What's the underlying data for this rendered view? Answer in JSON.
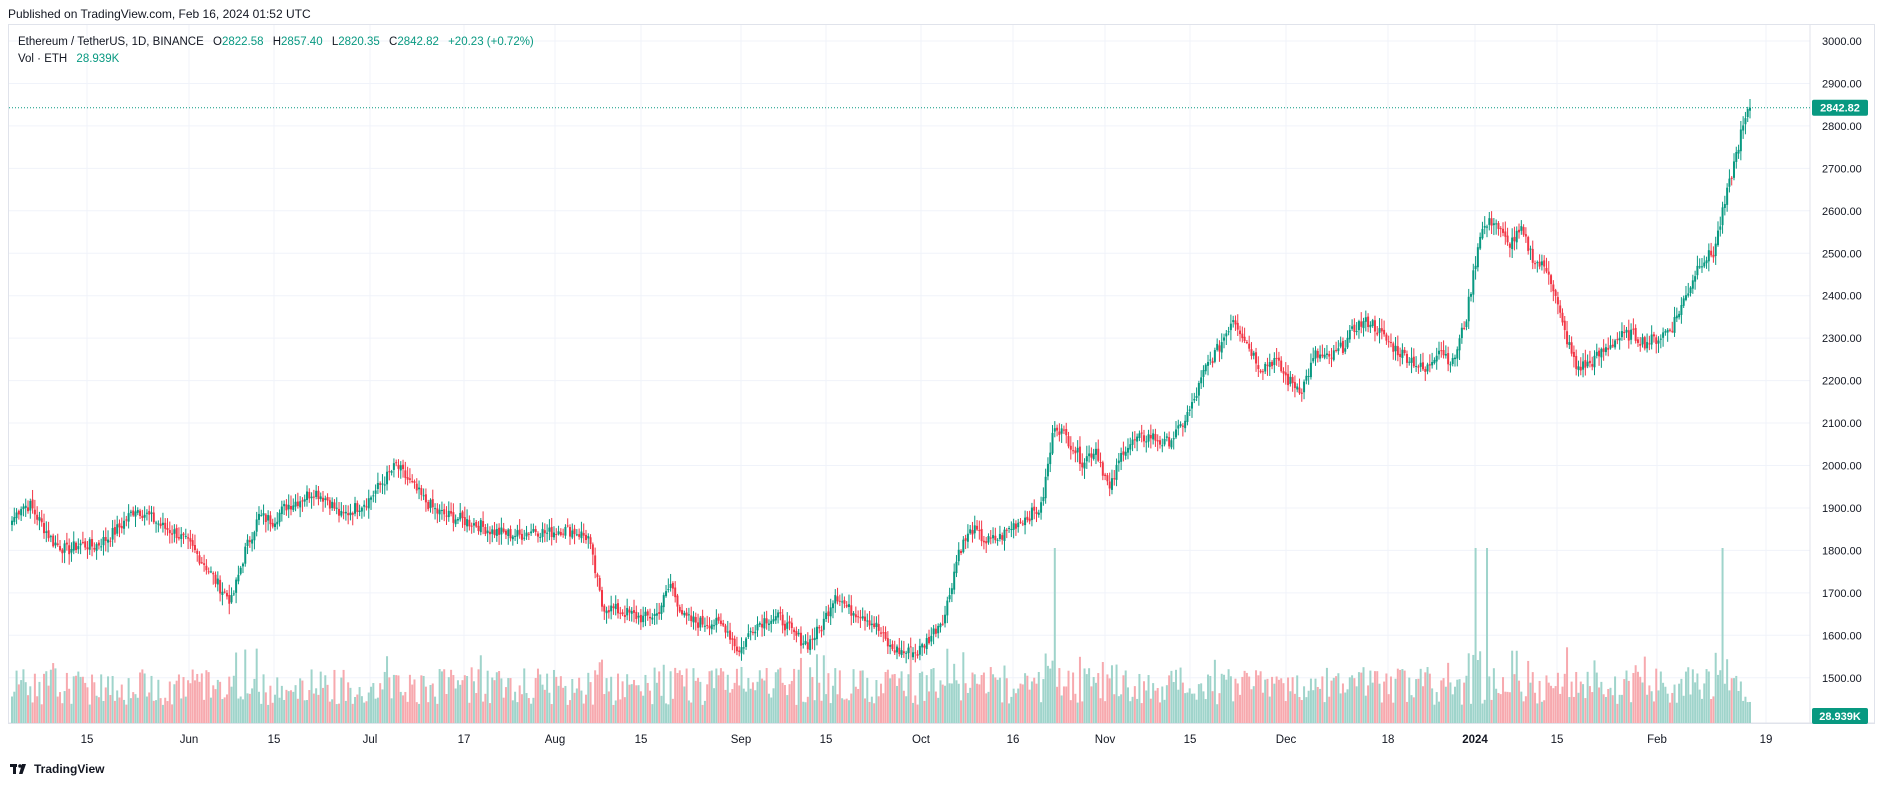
{
  "header": {
    "published": "Published on TradingView.com, Feb 16, 2024 01:52 UTC"
  },
  "legend": {
    "symbol": "Ethereum / TetherUS, 1D, BINANCE",
    "open_label": "O",
    "open": "2822.58",
    "high_label": "H",
    "high": "2857.40",
    "low_label": "L",
    "low": "2820.35",
    "close_label": "C",
    "close": "2842.82",
    "change": "+20.23 (+0.72%)",
    "vol_label": "Vol · ETH",
    "vol_value": "28.939K"
  },
  "footer": {
    "brand": "TradingView",
    "logo_icon": "tradingview-logo-icon"
  },
  "colors": {
    "up": "#089981",
    "down": "#f23645",
    "up_vol": "#9fd4cb",
    "down_vol": "#f7a9ae",
    "grid": "#f0f3fa"
  },
  "chart_data": {
    "type": "candlestick",
    "symbol": "ETHUSDT",
    "interval": "1D",
    "ylim": [
      1450,
      3000
    ],
    "y_ticks": [
      "3000.00",
      "2900.00",
      "2800.00",
      "2700.00",
      "2600.00",
      "2500.00",
      "2400.00",
      "2300.00",
      "2200.00",
      "2100.00",
      "2000.00",
      "1900.00",
      "1800.00",
      "1700.00",
      "1600.00",
      "1500.00"
    ],
    "x_ticks": [
      "15",
      "Jun",
      "15",
      "Jul",
      "17",
      "Aug",
      "15",
      "Sep",
      "15",
      "Oct",
      "16",
      "Nov",
      "15",
      "Dec",
      "18",
      "2024",
      "15",
      "Feb",
      "19"
    ],
    "x_tick_bold": [
      "2024"
    ],
    "last_price_label": "2842.82",
    "last_price": 2842.82,
    "last_volume_label": "28.939K",
    "ohlc_anchor_closes": [
      [
        0,
        1870
      ],
      [
        4,
        1905
      ],
      [
        8,
        1905
      ],
      [
        12,
        1870
      ],
      [
        18,
        1820
      ],
      [
        24,
        1800
      ],
      [
        30,
        1815
      ],
      [
        36,
        1810
      ],
      [
        42,
        1830
      ],
      [
        48,
        1860
      ],
      [
        54,
        1900
      ],
      [
        60,
        1880
      ],
      [
        66,
        1855
      ],
      [
        72,
        1840
      ],
      [
        78,
        1810
      ],
      [
        84,
        1770
      ],
      [
        90,
        1720
      ],
      [
        96,
        1680
      ],
      [
        102,
        1800
      ],
      [
        108,
        1880
      ],
      [
        114,
        1870
      ],
      [
        120,
        1905
      ],
      [
        126,
        1920
      ],
      [
        132,
        1940
      ],
      [
        138,
        1920
      ],
      [
        144,
        1880
      ],
      [
        150,
        1900
      ],
      [
        156,
        1920
      ],
      [
        162,
        1960
      ],
      [
        168,
        2000
      ],
      [
        174,
        1960
      ],
      [
        180,
        1920
      ],
      [
        186,
        1890
      ],
      [
        192,
        1880
      ],
      [
        198,
        1870
      ],
      [
        204,
        1860
      ],
      [
        210,
        1845
      ],
      [
        216,
        1840
      ],
      [
        222,
        1835
      ],
      [
        228,
        1850
      ],
      [
        234,
        1840
      ],
      [
        240,
        1850
      ],
      [
        246,
        1845
      ],
      [
        252,
        1830
      ],
      [
        258,
        1670
      ],
      [
        264,
        1660
      ],
      [
        270,
        1650
      ],
      [
        276,
        1640
      ],
      [
        282,
        1650
      ],
      [
        288,
        1720
      ],
      [
        294,
        1640
      ],
      [
        300,
        1630
      ],
      [
        306,
        1630
      ],
      [
        312,
        1620
      ],
      [
        318,
        1560
      ],
      [
        324,
        1620
      ],
      [
        330,
        1640
      ],
      [
        336,
        1640
      ],
      [
        342,
        1600
      ],
      [
        348,
        1580
      ],
      [
        354,
        1620
      ],
      [
        360,
        1700
      ],
      [
        366,
        1660
      ],
      [
        372,
        1650
      ],
      [
        378,
        1620
      ],
      [
        384,
        1570
      ],
      [
        390,
        1560
      ],
      [
        396,
        1560
      ],
      [
        402,
        1600
      ],
      [
        408,
        1650
      ],
      [
        414,
        1800
      ],
      [
        420,
        1850
      ],
      [
        426,
        1820
      ],
      [
        432,
        1830
      ],
      [
        438,
        1860
      ],
      [
        444,
        1880
      ],
      [
        450,
        1900
      ],
      [
        456,
        2100
      ],
      [
        462,
        2060
      ],
      [
        468,
        2010
      ],
      [
        474,
        2040
      ],
      [
        480,
        1940
      ],
      [
        486,
        2040
      ],
      [
        492,
        2060
      ],
      [
        498,
        2070
      ],
      [
        504,
        2050
      ],
      [
        510,
        2080
      ],
      [
        516,
        2140
      ],
      [
        522,
        2230
      ],
      [
        528,
        2280
      ],
      [
        534,
        2350
      ],
      [
        540,
        2290
      ],
      [
        546,
        2230
      ],
      [
        552,
        2250
      ],
      [
        558,
        2200
      ],
      [
        564,
        2180
      ],
      [
        570,
        2260
      ],
      [
        576,
        2250
      ],
      [
        582,
        2280
      ],
      [
        588,
        2330
      ],
      [
        594,
        2340
      ],
      [
        600,
        2300
      ],
      [
        606,
        2270
      ],
      [
        612,
        2250
      ],
      [
        618,
        2220
      ],
      [
        624,
        2280
      ],
      [
        630,
        2240
      ],
      [
        636,
        2350
      ],
      [
        642,
        2550
      ],
      [
        648,
        2580
      ],
      [
        654,
        2520
      ],
      [
        660,
        2550
      ],
      [
        666,
        2480
      ],
      [
        672,
        2460
      ],
      [
        678,
        2330
      ],
      [
        684,
        2230
      ],
      [
        690,
        2240
      ],
      [
        696,
        2270
      ],
      [
        702,
        2300
      ],
      [
        708,
        2310
      ],
      [
        714,
        2290
      ],
      [
        720,
        2300
      ],
      [
        726,
        2330
      ],
      [
        732,
        2400
      ],
      [
        738,
        2480
      ],
      [
        744,
        2500
      ],
      [
        750,
        2640
      ],
      [
        756,
        2780
      ],
      [
        760,
        2843
      ]
    ]
  }
}
